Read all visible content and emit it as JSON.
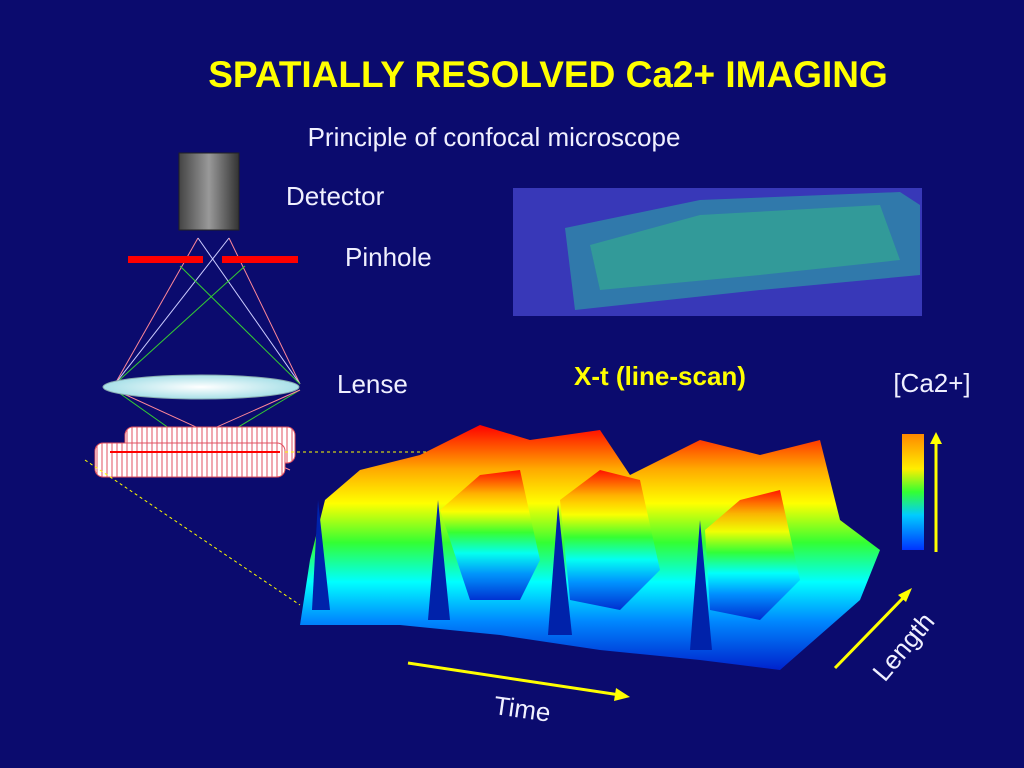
{
  "title": "SPATIALLY RESOLVED Ca2+ IMAGING",
  "subtitle": "Principle of confocal microscope",
  "labels": {
    "detector": "Detector",
    "pinhole": "Pinhole",
    "lense": "Lense"
  },
  "plot": {
    "title": "X-t (line-scan)",
    "colorbar_label": "[Ca2+]",
    "x_axis": "Time",
    "y_axis": "Length"
  }
}
